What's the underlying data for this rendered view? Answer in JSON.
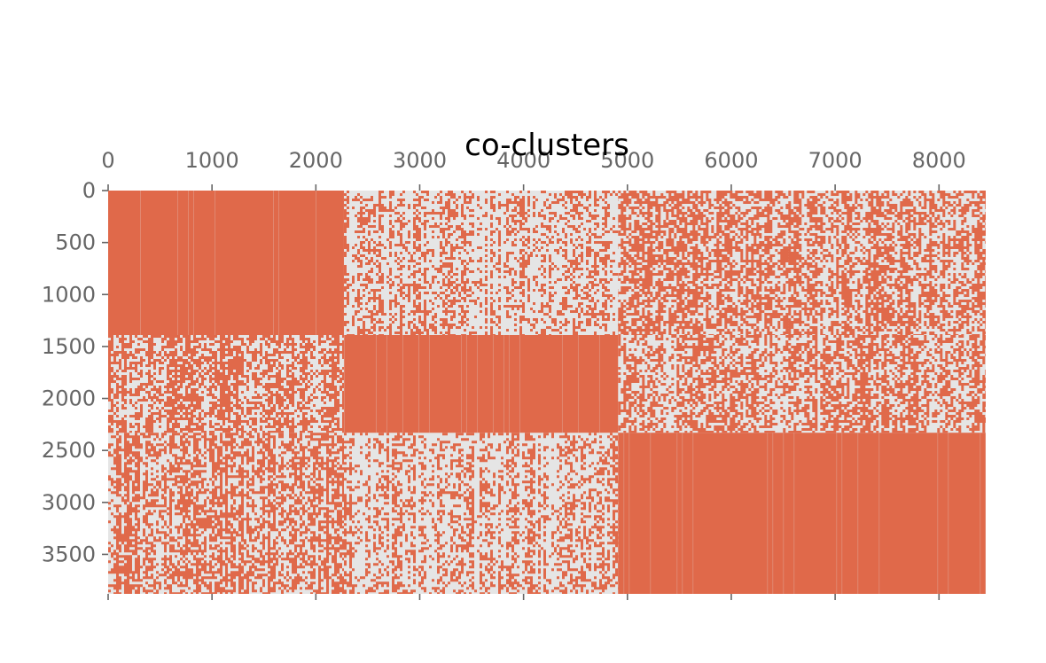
{
  "chart_data": {
    "type": "heatmap",
    "title": "co-clusters",
    "xlabel": "",
    "ylabel": "",
    "xlim": [
      0,
      8450
    ],
    "ylim": [
      0,
      3880
    ],
    "x_axis_position": "top",
    "x_ticks": [
      0,
      1000,
      2000,
      3000,
      4000,
      5000,
      6000,
      7000,
      8000
    ],
    "x_tick_labels": [
      "0",
      "1000",
      "2000",
      "3000",
      "4000",
      "5000",
      "6000",
      "7000",
      "8000"
    ],
    "y_ticks": [
      0,
      500,
      1000,
      1500,
      2000,
      2500,
      3000,
      3500
    ],
    "y_tick_labels": [
      "0",
      "500",
      "1000",
      "1500",
      "2000",
      "2500",
      "3000",
      "3500"
    ],
    "grid": false,
    "colors": {
      "background": "#e5e5e5",
      "marker": "#e0694a",
      "tick": "#666666",
      "title": "#000000"
    },
    "row_clusters": [
      [
        0,
        1390
      ],
      [
        1390,
        2330
      ],
      [
        2330,
        3880
      ]
    ],
    "col_clusters": [
      [
        0,
        2270
      ],
      [
        2270,
        4910
      ],
      [
        4910,
        8450
      ]
    ],
    "blocks": [
      {
        "rows": [
          0,
          1390
        ],
        "cols": [
          0,
          2270
        ],
        "density": 1.0
      },
      {
        "rows": [
          0,
          1390
        ],
        "cols": [
          2270,
          4910
        ],
        "density": 0.35
      },
      {
        "rows": [
          0,
          1390
        ],
        "cols": [
          4910,
          8450
        ],
        "density": 0.55
      },
      {
        "rows": [
          1390,
          2330
        ],
        "cols": [
          0,
          2270
        ],
        "density": 0.55
      },
      {
        "rows": [
          1390,
          2330
        ],
        "cols": [
          2270,
          4910
        ],
        "density": 1.0
      },
      {
        "rows": [
          1390,
          2330
        ],
        "cols": [
          4910,
          8450
        ],
        "density": 0.5
      },
      {
        "rows": [
          2330,
          3880
        ],
        "cols": [
          0,
          2270
        ],
        "density": 0.55
      },
      {
        "rows": [
          2330,
          3880
        ],
        "cols": [
          2270,
          4910
        ],
        "density": 0.35
      },
      {
        "rows": [
          2330,
          3880
        ],
        "cols": [
          4910,
          8450
        ],
        "density": 1.0
      }
    ]
  }
}
